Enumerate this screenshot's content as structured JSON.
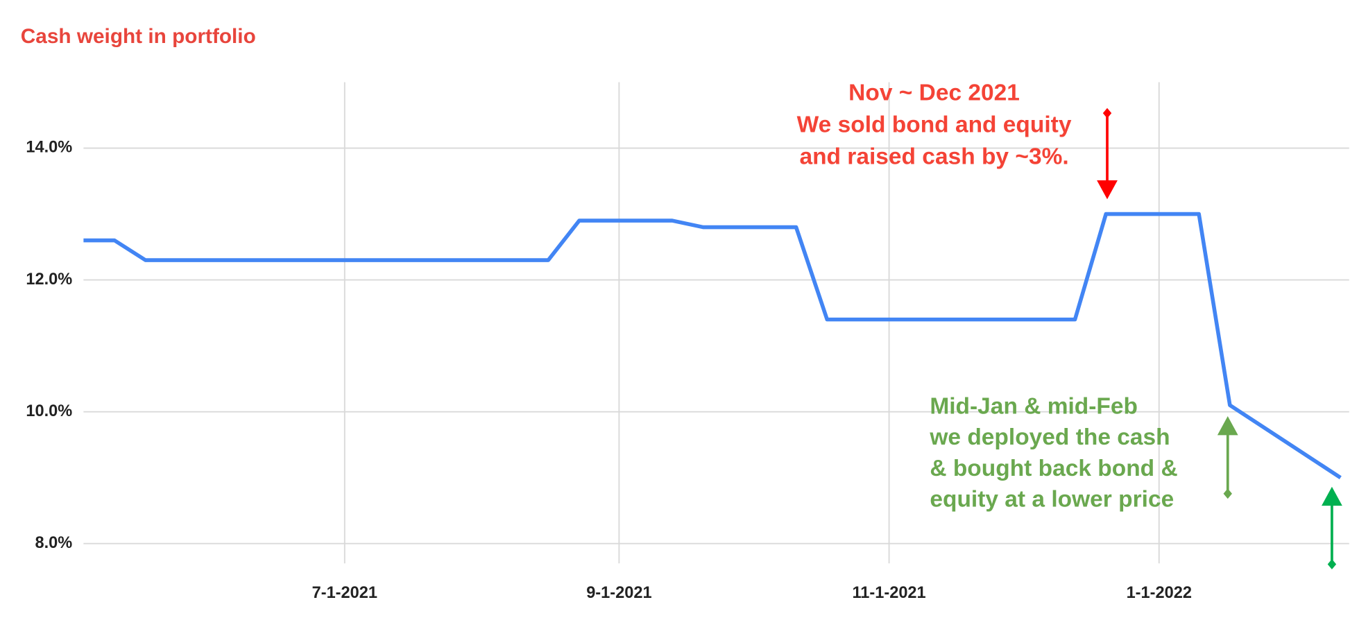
{
  "chart_data": {
    "type": "line",
    "title": "Cash weight in portfolio",
    "title_color": "#e8453c",
    "x": [
      "5-3-2021",
      "5-10-2021",
      "5-17-2021",
      "8-16-2021",
      "8-23-2021",
      "9-13-2021",
      "9-20-2021",
      "10-11-2021",
      "10-18-2021",
      "12-13-2021",
      "12-20-2021",
      "1-10-2022",
      "1-17-2022",
      "2-11-2022"
    ],
    "values": [
      12.6,
      12.6,
      12.3,
      12.3,
      12.9,
      12.9,
      12.8,
      12.8,
      11.4,
      11.4,
      13.0,
      13.0,
      10.1,
      9.0
    ],
    "color": "#4285f4",
    "xlim": [
      "5-3-2021",
      "2-11-2022"
    ],
    "xticks": [
      "7-1-2021",
      "9-1-2021",
      "11-1-2021",
      "1-1-2022"
    ],
    "ylim": [
      7.7,
      15.0
    ],
    "yticks": [
      {
        "value": 8,
        "label": "8.0%"
      },
      {
        "value": 10,
        "label": "10.0%"
      },
      {
        "value": 12,
        "label": "12.0%"
      },
      {
        "value": 14,
        "label": "14.0%"
      }
    ],
    "grid": true,
    "annotations": [
      {
        "lines": [
          "Nov ~ Dec 2021",
          "We sold bond and equity",
          "and raised cash by ~3%."
        ],
        "color": "#f44336"
      },
      {
        "lines": [
          "Mid-Jan & mid-Feb",
          "we deployed the cash",
          "& bought back bond &",
          "equity at a lower price"
        ],
        "color": "#6aa84f"
      }
    ]
  }
}
